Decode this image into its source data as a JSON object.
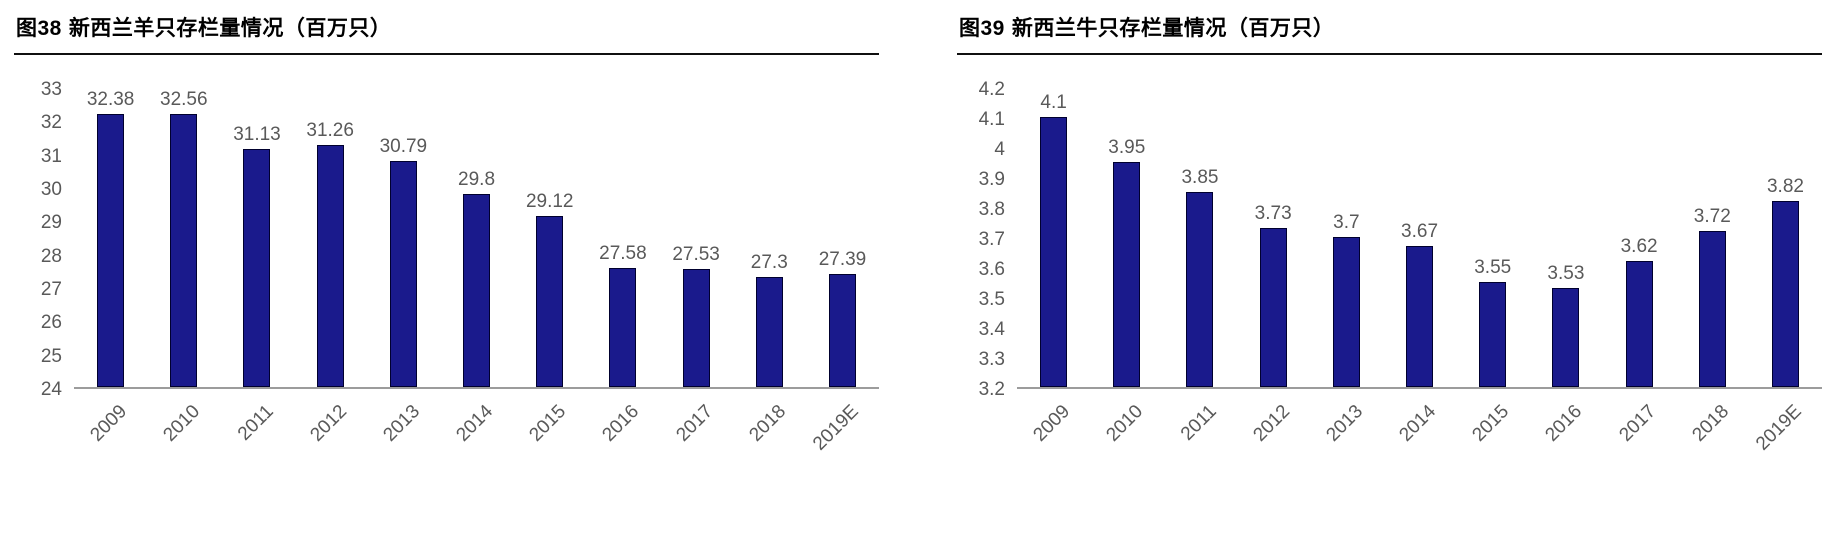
{
  "chart_data": [
    {
      "type": "bar",
      "figure_label": "图38",
      "title": "新西兰羊只存栏量情况（百万只）",
      "categories": [
        "2009",
        "2010",
        "2011",
        "2012",
        "2013",
        "2014",
        "2015",
        "2016",
        "2017",
        "2018",
        "2019E"
      ],
      "values": [
        32.38,
        32.56,
        31.13,
        31.26,
        30.79,
        29.8,
        29.12,
        27.58,
        27.53,
        27.3,
        27.39
      ],
      "xlabel": "",
      "ylabel": "",
      "ylim": [
        24,
        33
      ],
      "ytick_step": 1,
      "grid": false,
      "legend": "none",
      "data_labels": true,
      "bar_color": "#1a1a8c",
      "bar_border_color": "#00002e",
      "label_color": "#595959"
    },
    {
      "type": "bar",
      "figure_label": "图39",
      "title": "新西兰牛只存栏量情况（百万只）",
      "categories": [
        "2009",
        "2010",
        "2011",
        "2012",
        "2013",
        "2014",
        "2015",
        "2016",
        "2017",
        "2018",
        "2019E"
      ],
      "values": [
        4.1,
        3.95,
        3.85,
        3.73,
        3.7,
        3.67,
        3.55,
        3.53,
        3.62,
        3.72,
        3.82
      ],
      "xlabel": "",
      "ylabel": "",
      "ylim": [
        3.2,
        4.2
      ],
      "ytick_step": 0.1,
      "grid": false,
      "legend": "none",
      "data_labels": true,
      "bar_color": "#1a1a8c",
      "bar_border_color": "#00002e",
      "label_color": "#595959"
    }
  ]
}
